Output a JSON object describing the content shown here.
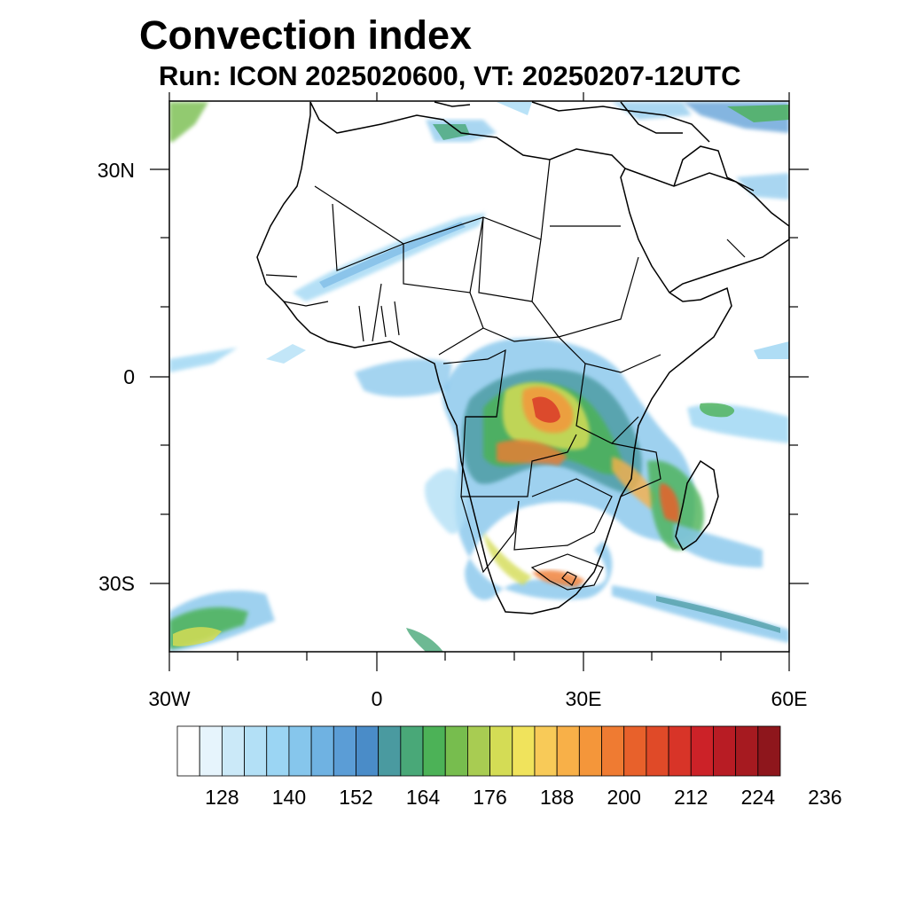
{
  "title": "Convection index",
  "subtitle": "Run: ICON 2025020600,  VT: 20250207-12UTC",
  "axes": {
    "lon_labels": [
      "30W",
      "0",
      "30E",
      "60E"
    ],
    "lat_labels": [
      "30N",
      "0",
      "30S"
    ]
  },
  "colorbar": {
    "labels": [
      "128",
      "140",
      "152",
      "164",
      "176",
      "188",
      "200",
      "212",
      "224",
      "236"
    ],
    "colors": [
      "#ffffff",
      "#e6f4fc",
      "#cbe9f8",
      "#b3e0f6",
      "#9bd5f3",
      "#86c6ec",
      "#6fb2e2",
      "#5b9dd6",
      "#4a8cc8",
      "#4a9aa0",
      "#49a878",
      "#4cb257",
      "#77bd4e",
      "#a8cc52",
      "#d4dc55",
      "#f0e35c",
      "#f8ca58",
      "#f8b048",
      "#f4963a",
      "#ef7b32",
      "#e8612b",
      "#e04a28",
      "#d83428",
      "#cc2228",
      "#b81c24",
      "#a61a20",
      "#8e161c"
    ]
  }
}
